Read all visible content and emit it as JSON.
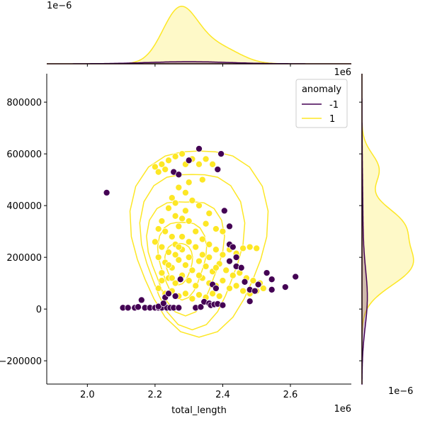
{
  "chart_data": {
    "type": "scatter",
    "subtype": "jointplot",
    "xlabel": "total_length",
    "ylabel": "",
    "x_exponent_label": "1e6",
    "y_exponent_label": "1e6",
    "top_marginal_exponent_label": "1e−6",
    "right_marginal_exponent_label": "1e−6",
    "xlim": [
      1.88,
      2.78
    ],
    "ylim": [
      -290000,
      910000
    ],
    "x_ticks": [
      "2.0",
      "2.2",
      "2.4",
      "2.6"
    ],
    "y_ticks": [
      "−200000",
      "0",
      "200000",
      "400000",
      "600000",
      "800000"
    ],
    "x_tick_values": [
      2.0,
      2.2,
      2.4,
      2.6
    ],
    "y_tick_values": [
      -200000,
      0,
      200000,
      400000,
      600000,
      800000
    ],
    "legend": {
      "title": "anomaly",
      "placement": "top-right",
      "entries": [
        {
          "label": "-1",
          "color": "#440154"
        },
        {
          "label": "1",
          "color": "#fde725"
        }
      ]
    },
    "grid": false,
    "series": [
      {
        "name": "-1",
        "color": "#440154",
        "points": [
          [
            2.057,
            450000
          ],
          [
            2.105,
            5000
          ],
          [
            2.12,
            5000
          ],
          [
            2.14,
            5000
          ],
          [
            2.15,
            8000
          ],
          [
            2.16,
            35000
          ],
          [
            2.17,
            5000
          ],
          [
            2.185,
            5000
          ],
          [
            2.2,
            5000
          ],
          [
            2.21,
            5000
          ],
          [
            2.22,
            5000
          ],
          [
            2.235,
            5000
          ],
          [
            2.245,
            5000
          ],
          [
            2.255,
            5000
          ],
          [
            2.27,
            5000
          ],
          [
            2.21,
            10000
          ],
          [
            2.225,
            22000
          ],
          [
            2.23,
            45000
          ],
          [
            2.24,
            60000
          ],
          [
            2.26,
            50000
          ],
          [
            2.275,
            115000
          ],
          [
            2.255,
            530000
          ],
          [
            2.27,
            520000
          ],
          [
            2.3,
            575000
          ],
          [
            2.33,
            620000
          ],
          [
            2.32,
            5000
          ],
          [
            2.335,
            8000
          ],
          [
            2.345,
            28000
          ],
          [
            2.36,
            22000
          ],
          [
            2.365,
            15000
          ],
          [
            2.375,
            18000
          ],
          [
            2.385,
            20000
          ],
          [
            2.395,
            600000
          ],
          [
            2.4,
            15000
          ],
          [
            2.385,
            540000
          ],
          [
            2.405,
            380000
          ],
          [
            2.42,
            320000
          ],
          [
            2.42,
            250000
          ],
          [
            2.43,
            240000
          ],
          [
            2.44,
            200000
          ],
          [
            2.42,
            185000
          ],
          [
            2.44,
            165000
          ],
          [
            2.455,
            160000
          ],
          [
            2.465,
            105000
          ],
          [
            2.48,
            75000
          ],
          [
            2.505,
            95000
          ],
          [
            2.53,
            140000
          ],
          [
            2.545,
            115000
          ],
          [
            2.545,
            75000
          ],
          [
            2.585,
            85000
          ],
          [
            2.615,
            125000
          ],
          [
            2.48,
            30000
          ],
          [
            2.495,
            70000
          ],
          [
            2.37,
            95000
          ],
          [
            2.38,
            80000
          ]
        ]
      },
      {
        "name": "1",
        "color": "#fde725",
        "points": [
          [
            2.2,
            550000
          ],
          [
            2.21,
            530000
          ],
          [
            2.22,
            560000
          ],
          [
            2.23,
            540000
          ],
          [
            2.24,
            575000
          ],
          [
            2.26,
            590000
          ],
          [
            2.28,
            600000
          ],
          [
            2.29,
            560000
          ],
          [
            2.31,
            580000
          ],
          [
            2.33,
            560000
          ],
          [
            2.35,
            580000
          ],
          [
            2.37,
            560000
          ],
          [
            2.34,
            500000
          ],
          [
            2.3,
            490000
          ],
          [
            2.27,
            470000
          ],
          [
            2.25,
            430000
          ],
          [
            2.24,
            390000
          ],
          [
            2.26,
            360000
          ],
          [
            2.29,
            380000
          ],
          [
            2.33,
            400000
          ],
          [
            2.36,
            370000
          ],
          [
            2.22,
            340000
          ],
          [
            2.21,
            310000
          ],
          [
            2.23,
            300000
          ],
          [
            2.25,
            280000
          ],
          [
            2.27,
            320000
          ],
          [
            2.3,
            340000
          ],
          [
            2.32,
            300000
          ],
          [
            2.35,
            330000
          ],
          [
            2.38,
            310000
          ],
          [
            2.4,
            300000
          ],
          [
            2.42,
            320000
          ],
          [
            2.2,
            260000
          ],
          [
            2.22,
            240000
          ],
          [
            2.24,
            220000
          ],
          [
            2.26,
            250000
          ],
          [
            2.28,
            230000
          ],
          [
            2.3,
            260000
          ],
          [
            2.32,
            240000
          ],
          [
            2.34,
            210000
          ],
          [
            2.36,
            250000
          ],
          [
            2.38,
            230000
          ],
          [
            2.4,
            210000
          ],
          [
            2.42,
            230000
          ],
          [
            2.44,
            215000
          ],
          [
            2.46,
            235000
          ],
          [
            2.48,
            240000
          ],
          [
            2.5,
            235000
          ],
          [
            2.21,
            200000
          ],
          [
            2.23,
            180000
          ],
          [
            2.25,
            160000
          ],
          [
            2.27,
            190000
          ],
          [
            2.29,
            170000
          ],
          [
            2.31,
            150000
          ],
          [
            2.33,
            185000
          ],
          [
            2.35,
            165000
          ],
          [
            2.37,
            145000
          ],
          [
            2.39,
            175000
          ],
          [
            2.41,
            150000
          ],
          [
            2.43,
            130000
          ],
          [
            2.45,
            140000
          ],
          [
            2.47,
            120000
          ],
          [
            2.49,
            110000
          ],
          [
            2.51,
            100000
          ],
          [
            2.22,
            140000
          ],
          [
            2.24,
            120000
          ],
          [
            2.26,
            100000
          ],
          [
            2.28,
            130000
          ],
          [
            2.3,
            110000
          ],
          [
            2.32,
            90000
          ],
          [
            2.34,
            120000
          ],
          [
            2.36,
            100000
          ],
          [
            2.38,
            90000
          ],
          [
            2.4,
            110000
          ],
          [
            2.42,
            80000
          ],
          [
            2.44,
            90000
          ],
          [
            2.46,
            70000
          ],
          [
            2.48,
            60000
          ],
          [
            2.5,
            70000
          ],
          [
            2.52,
            80000
          ],
          [
            2.21,
            80000
          ],
          [
            2.23,
            60000
          ],
          [
            2.25,
            70000
          ],
          [
            2.27,
            50000
          ],
          [
            2.29,
            60000
          ],
          [
            2.31,
            40000
          ],
          [
            2.33,
            55000
          ],
          [
            2.35,
            45000
          ],
          [
            2.37,
            60000
          ],
          [
            2.39,
            50000
          ],
          [
            2.28,
            280000
          ],
          [
            2.3,
            200000
          ],
          [
            2.26,
            210000
          ],
          [
            2.24,
            170000
          ],
          [
            2.22,
            110000
          ],
          [
            2.34,
            270000
          ],
          [
            2.36,
            200000
          ],
          [
            2.38,
            160000
          ],
          [
            2.29,
            450000
          ],
          [
            2.26,
            410000
          ],
          [
            2.28,
            350000
          ],
          [
            2.31,
            420000
          ],
          [
            2.27,
            240000
          ],
          [
            2.25,
            120000
          ],
          [
            2.33,
            130000
          ]
        ]
      }
    ]
  }
}
